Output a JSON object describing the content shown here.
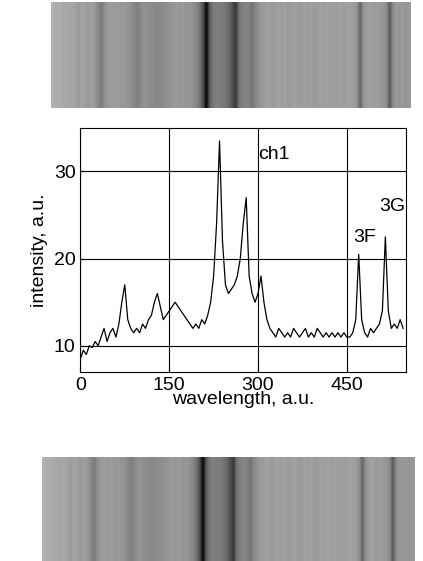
{
  "chart_data": {
    "type": "line",
    "xlabel": "wavelength, a.u.",
    "ylabel": "intensity, a.u.",
    "x": [
      0,
      5,
      10,
      15,
      20,
      25,
      30,
      35,
      40,
      45,
      50,
      55,
      60,
      65,
      70,
      75,
      80,
      85,
      90,
      95,
      100,
      105,
      110,
      115,
      120,
      125,
      130,
      135,
      140,
      145,
      150,
      155,
      160,
      165,
      170,
      175,
      180,
      185,
      190,
      195,
      200,
      205,
      210,
      215,
      220,
      225,
      230,
      235,
      240,
      245,
      250,
      255,
      260,
      265,
      270,
      275,
      280,
      285,
      290,
      295,
      300,
      305,
      310,
      315,
      320,
      325,
      330,
      335,
      340,
      345,
      350,
      355,
      360,
      365,
      370,
      375,
      380,
      385,
      390,
      395,
      400,
      405,
      410,
      415,
      420,
      425,
      430,
      435,
      440,
      445,
      450,
      455,
      460,
      465,
      470,
      475,
      480,
      485,
      490,
      495,
      500,
      505,
      510,
      515,
      520,
      525,
      530,
      535,
      540,
      545
    ],
    "values": [
      8.5,
      9.5,
      9,
      10,
      9.8,
      10.5,
      10,
      11,
      12,
      10.5,
      11.5,
      12,
      11,
      12.5,
      15,
      17,
      13,
      12,
      11.5,
      12,
      11.5,
      12.5,
      12,
      13,
      13.5,
      15,
      16,
      14.5,
      13,
      13.5,
      14,
      14.5,
      15,
      14.5,
      14,
      13.5,
      13,
      12.5,
      12,
      12.5,
      12,
      13,
      12.5,
      13.5,
      15,
      18,
      24,
      33.5,
      22,
      17,
      16,
      16.5,
      17,
      18,
      20,
      24,
      27,
      18,
      16,
      15,
      16,
      18,
      15,
      13,
      12,
      11.5,
      11,
      12,
      11.5,
      11,
      11.5,
      11,
      12,
      11.5,
      11,
      11.5,
      12,
      11,
      11.5,
      11,
      12,
      11.5,
      11,
      11.5,
      11,
      11.5,
      11,
      11.5,
      11,
      11.5,
      11,
      11,
      11.5,
      13,
      20.5,
      13,
      11.5,
      11,
      12,
      11.5,
      12,
      12.5,
      14,
      22.5,
      14,
      12,
      12.5,
      12,
      13,
      12
    ],
    "color": "#000000",
    "xlim": [
      0,
      550
    ],
    "xticks": [
      0,
      150,
      300,
      450
    ],
    "ylim": [
      7,
      35
    ],
    "yticks": [
      10,
      20,
      30
    ],
    "grid": true,
    "annotations": [
      {
        "text": "ch1",
        "x": 300,
        "y": 31
      },
      {
        "text": "3F",
        "x": 460,
        "y": 21.5
      },
      {
        "text": "3G",
        "x": 505,
        "y": 25
      }
    ]
  }
}
